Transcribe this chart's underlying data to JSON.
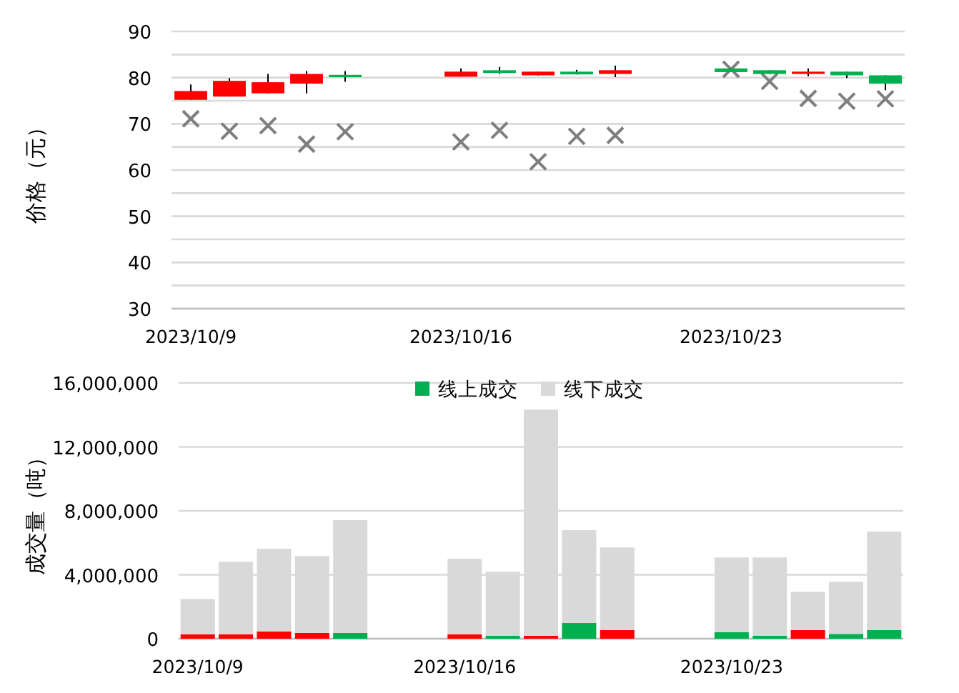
{
  "chart_data": [
    {
      "type": "candlestick",
      "ylabel": "价格（元）",
      "x": [
        "2023-10-09",
        "2023-10-10",
        "2023-10-11",
        "2023-10-12",
        "2023-10-13",
        "2023-10-16",
        "2023-10-17",
        "2023-10-18",
        "2023-10-19",
        "2023-10-20",
        "2023-10-23",
        "2023-10-24",
        "2023-10-25",
        "2023-10-26",
        "2023-10-27"
      ],
      "ohlc": [
        [
          75.2,
          78.5,
          75.2,
          77.1
        ],
        [
          75.9,
          79.9,
          75.9,
          79.3
        ],
        [
          76.6,
          80.8,
          76.6,
          79.0
        ],
        [
          78.7,
          81.4,
          76.6,
          80.8
        ],
        [
          80.6,
          81.4,
          79.1,
          80.1
        ],
        [
          80.2,
          82.0,
          80.2,
          81.3
        ],
        [
          81.6,
          82.3,
          80.8,
          81.0
        ],
        [
          80.5,
          81.3,
          80.5,
          81.3
        ],
        [
          81.3,
          81.7,
          80.7,
          80.7
        ],
        [
          80.8,
          82.6,
          80.1,
          81.6
        ],
        [
          82.0,
          82.0,
          81.2,
          81.2
        ],
        [
          81.6,
          81.6,
          80.8,
          80.8
        ],
        [
          80.8,
          82.0,
          80.3,
          81.3
        ],
        [
          81.3,
          81.3,
          79.9,
          80.5
        ],
        [
          80.5,
          80.5,
          77.3,
          78.7
        ]
      ],
      "colors": [
        "#ff0000",
        "#ff0000",
        "#ff0000",
        "#ff0000",
        "#00b050",
        "#ff0000",
        "#00b050",
        "#ff0000",
        "#00b050",
        "#ff0000",
        "#00b050",
        "#00b050",
        "#ff0000",
        "#00b050",
        "#00b050"
      ],
      "series": [
        {
          "type": "scatter",
          "marker": "cross",
          "color": "#7f7f7f",
          "values": [
            71.1,
            68.4,
            69.6,
            65.6,
            68.3,
            66.1,
            68.6,
            61.8,
            67.3,
            67.5,
            81.8,
            79.2,
            75.5,
            74.9,
            75.4
          ]
        }
      ],
      "xlim": [
        "2023-10-08T12:00",
        "2023-10-27T12:00"
      ],
      "xticks": [
        {
          "value": "2023-10-09",
          "label": "2023/10/9"
        },
        {
          "value": "2023-10-16",
          "label": "2023/10/16"
        },
        {
          "value": "2023-10-23",
          "label": "2023/10/23"
        }
      ],
      "ylim": [
        30,
        90
      ],
      "yticks": [
        30,
        {
          "value": 35,
          "label": null
        },
        40,
        {
          "value": 45,
          "label": null
        },
        50,
        {
          "value": 55,
          "label": null
        },
        60,
        {
          "value": 65,
          "label": null
        },
        70,
        {
          "value": 75,
          "label": null
        },
        80,
        {
          "value": 85,
          "label": null
        },
        90
      ],
      "grid": "y"
    },
    {
      "type": "bar",
      "stacked": true,
      "ylabel": "成交量（吨）",
      "legend": "top",
      "x": [
        "2023-10-09",
        "2023-10-10",
        "2023-10-11",
        "2023-10-12",
        "2023-10-13",
        "2023-10-16",
        "2023-10-17",
        "2023-10-18",
        "2023-10-19",
        "2023-10-20",
        "2023-10-23",
        "2023-10-24",
        "2023-10-25",
        "2023-10-26",
        "2023-10-27"
      ],
      "series": [
        {
          "name": "线上成交",
          "color": "#00b050",
          "colors": [
            "#ff0000",
            "#ff0000",
            "#ff0000",
            "#ff0000",
            "#00b050",
            "#ff0000",
            "#00b050",
            "#ff0000",
            "#00b050",
            "#ff0000",
            "#00b050",
            "#00b050",
            "#ff0000",
            "#00b050",
            "#00b050"
          ],
          "values": [
            270000,
            270000,
            450000,
            360000,
            360000,
            270000,
            180000,
            180000,
            990000,
            540000,
            420000,
            180000,
            540000,
            300000,
            540000
          ]
        },
        {
          "name": "线下成交",
          "color": "#d9d9d9",
          "values": [
            2210000,
            4540000,
            5170000,
            4810000,
            7060000,
            4730000,
            4010000,
            14150000,
            5800000,
            5170000,
            4660000,
            4900000,
            2390000,
            3260000,
            6160000
          ]
        }
      ],
      "xlim": [
        "2023-10-08T12:00",
        "2023-10-27T12:00"
      ],
      "xticks": [
        {
          "value": "2023-10-09",
          "label": "2023/10/9"
        },
        {
          "value": "2023-10-16",
          "label": "2023/10/16"
        },
        {
          "value": "2023-10-23",
          "label": "2023/10/23"
        }
      ],
      "ylim": [
        0,
        16000000
      ],
      "yticks": [
        {
          "value": 0,
          "label": "0"
        },
        {
          "value": 4000000,
          "label": "4,000,000"
        },
        {
          "value": 8000000,
          "label": "8,000,000"
        },
        {
          "value": 12000000,
          "label": "12,000,000"
        },
        {
          "value": 16000000,
          "label": "16,000,000"
        }
      ],
      "grid": "y"
    }
  ]
}
